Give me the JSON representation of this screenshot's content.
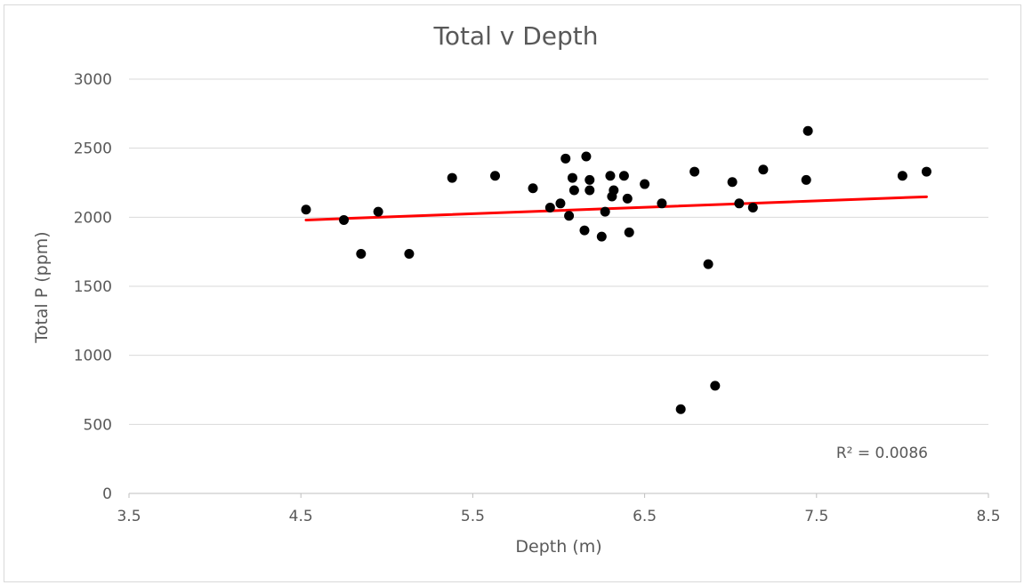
{
  "chart_data": {
    "type": "scatter",
    "title": "Total v Depth",
    "xlabel": "Depth (m)",
    "ylabel": "Total P (ppm)",
    "xlim": [
      3.5,
      8.5
    ],
    "ylim": [
      0,
      3000
    ],
    "x_ticks": [
      3.5,
      4.5,
      5.5,
      6.5,
      7.5,
      8.5
    ],
    "x_tick_labels": [
      "3.5",
      "4.5",
      "5.5",
      "6.5",
      "7.5",
      "8.5"
    ],
    "y_ticks": [
      0,
      500,
      1000,
      1500,
      2000,
      2500,
      3000
    ],
    "y_tick_labels": [
      "0",
      "500",
      "1000",
      "1500",
      "2000",
      "2500",
      "3000"
    ],
    "grid": true,
    "marker_color": "#000000",
    "trendline_color": "#ff0000",
    "series": [
      {
        "points": [
          [
            4.53,
            2055
          ],
          [
            4.75,
            1980
          ],
          [
            4.85,
            1735
          ],
          [
            4.95,
            2040
          ],
          [
            5.13,
            1735
          ],
          [
            5.38,
            2285
          ],
          [
            5.63,
            2300
          ],
          [
            5.85,
            2210
          ],
          [
            5.95,
            2070
          ],
          [
            6.01,
            2100
          ],
          [
            6.04,
            2425
          ],
          [
            6.06,
            2010
          ],
          [
            6.08,
            2285
          ],
          [
            6.09,
            2195
          ],
          [
            6.15,
            1905
          ],
          [
            6.16,
            2440
          ],
          [
            6.18,
            2270
          ],
          [
            6.18,
            2195
          ],
          [
            6.25,
            1860
          ],
          [
            6.27,
            2040
          ],
          [
            6.3,
            2300
          ],
          [
            6.31,
            2150
          ],
          [
            6.32,
            2195
          ],
          [
            6.38,
            2300
          ],
          [
            6.4,
            2135
          ],
          [
            6.41,
            1890
          ],
          [
            6.5,
            2240
          ],
          [
            6.6,
            2100
          ],
          [
            6.71,
            610
          ],
          [
            6.79,
            2330
          ],
          [
            6.87,
            1660
          ],
          [
            6.91,
            780
          ],
          [
            7.01,
            2255
          ],
          [
            7.05,
            2100
          ],
          [
            7.13,
            2070
          ],
          [
            7.19,
            2345
          ],
          [
            7.44,
            2270
          ],
          [
            7.45,
            2625
          ],
          [
            8.0,
            2300
          ],
          [
            8.14,
            2330
          ]
        ]
      }
    ],
    "trendline": {
      "type": "linear",
      "x_start": 4.53,
      "x_end": 8.14,
      "y_start": 1980,
      "y_end": 2148
    },
    "annotation": "R² = 0.0086"
  }
}
